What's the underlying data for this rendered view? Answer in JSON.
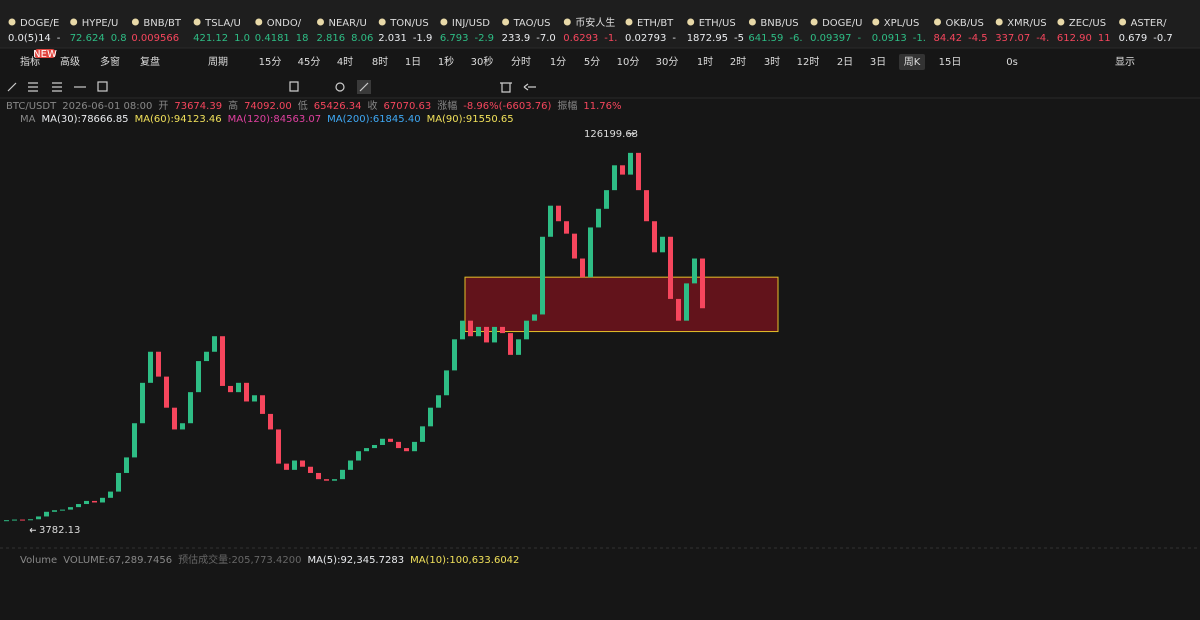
{
  "ticker": [
    {
      "name": "DOGE/E",
      "price": "0.0(5)14",
      "change": "-",
      "color": "#eaecef"
    },
    {
      "name": "HYPE/U",
      "price": "72.624",
      "change": "0.8",
      "color": "#2ebd85"
    },
    {
      "name": "BNB/BT",
      "price": "0.009566",
      "change": "",
      "color": "#f6465d"
    },
    {
      "name": "TSLA/U",
      "price": "421.12",
      "change": "1.0",
      "color": "#2ebd85"
    },
    {
      "name": "ONDO/",
      "price": "0.4181",
      "change": "18",
      "color": "#2ebd85"
    },
    {
      "name": "NEAR/U",
      "price": "2.816",
      "change": "8.06",
      "color": "#2ebd85"
    },
    {
      "name": "TON/US",
      "price": "2.031",
      "change": "-1.9",
      "color": "#eaecef"
    },
    {
      "name": "INJ/USD",
      "price": "6.793",
      "change": "-2.9",
      "color": "#2ebd85"
    },
    {
      "name": "TAO/US",
      "price": "233.9",
      "change": "-7.0",
      "color": "#eaecef"
    },
    {
      "name": "币安人生",
      "price": "0.6293",
      "change": "-1.",
      "color": "#f6465d"
    },
    {
      "name": "ETH/BT",
      "price": "0.02793",
      "change": "-",
      "color": "#eaecef"
    },
    {
      "name": "ETH/US",
      "price": "1872.95",
      "change": "-5",
      "color": "#eaecef"
    },
    {
      "name": "BNB/US",
      "price": "641.59",
      "change": "-6.",
      "color": "#2ebd85"
    },
    {
      "name": "DOGE/U",
      "price": "0.09397",
      "change": "-",
      "color": "#2ebd85"
    },
    {
      "name": "XPL/US",
      "price": "0.0913",
      "change": "-1.",
      "color": "#2ebd85"
    },
    {
      "name": "OKB/US",
      "price": "84.42",
      "change": "-4.5",
      "color": "#f6465d"
    },
    {
      "name": "XMR/US",
      "price": "337.07",
      "change": "-4.",
      "color": "#f6465d"
    },
    {
      "name": "ZEC/US",
      "price": "612.90",
      "change": "11",
      "color": "#f6465d"
    },
    {
      "name": "ASTER/",
      "price": "0.679",
      "change": "-0.7",
      "color": "#eaecef"
    }
  ],
  "toolbar": {
    "left": [
      "指标",
      "高级",
      "多窗",
      "复盘",
      "周期"
    ],
    "badge": "NEW",
    "intervals": [
      "15分",
      "45分",
      "4时",
      "8时",
      "1日",
      "1秒",
      "30秒",
      "分时",
      "1分",
      "5分",
      "10分",
      "30分",
      "1时",
      "2时",
      "3时",
      "12时",
      "2日",
      "3日",
      "周K",
      "15日"
    ],
    "active": "周K",
    "timer": "0s",
    "display": "显示"
  },
  "header": [
    {
      "text": "BTC/USDT",
      "color": "#888"
    },
    {
      "text": "2026-06-01 08:00",
      "color": "#888"
    },
    {
      "text": "开",
      "color": "#888"
    },
    {
      "text": "73674.39",
      "color": "#f6465d"
    },
    {
      "text": "高",
      "color": "#888"
    },
    {
      "text": "74092.00",
      "color": "#f6465d"
    },
    {
      "text": "低",
      "color": "#888"
    },
    {
      "text": "65426.34",
      "color": "#f6465d"
    },
    {
      "text": "收",
      "color": "#888"
    },
    {
      "text": "67070.63",
      "color": "#f6465d"
    },
    {
      "text": "涨幅",
      "color": "#888"
    },
    {
      "text": "-8.96%(-6603.76)",
      "color": "#f6465d"
    },
    {
      "text": "振幅",
      "color": "#888"
    },
    {
      "text": "11.76%",
      "color": "#f6465d"
    }
  ],
  "ma_legend": [
    {
      "text": "MA",
      "color": "#888"
    },
    {
      "text": "MA(30):78666.85",
      "color": "#eaecef"
    },
    {
      "text": "MA(60):94123.46",
      "color": "#f0e05a"
    },
    {
      "text": "MA(120):84563.07",
      "color": "#e040a0"
    },
    {
      "text": "MA(200):61845.40",
      "color": "#3fa9f5"
    },
    {
      "text": "MA(90):91550.65",
      "color": "#f0e05a"
    }
  ],
  "volume_legend": [
    {
      "text": "Volume",
      "color": "#888"
    },
    {
      "text": "VOLUME:67,289.7456",
      "color": "#888"
    },
    {
      "text": "预估成交量:205,773.4200",
      "color": "#666"
    },
    {
      "text": "MA(5):92,345.7283",
      "color": "#eaecef"
    },
    {
      "text": "MA(10):100,633.6042",
      "color": "#f0e05a"
    }
  ],
  "chart": {
    "ylim": [
      0,
      130000
    ],
    "high": 126199.63,
    "low": 3782.13,
    "up_color": "#2ebd85",
    "down_color": "#f6465d",
    "zone": {
      "top": 82000,
      "bottom": 64500
    },
    "closes": [
      3800,
      4000,
      3900,
      4100,
      5000,
      6500,
      7000,
      7200,
      8000,
      9000,
      10000,
      9500,
      11000,
      13000,
      19000,
      24000,
      35000,
      48000,
      58000,
      50000,
      40000,
      33000,
      35000,
      45000,
      55000,
      58000,
      63000,
      47000,
      45000,
      48000,
      42000,
      44000,
      38000,
      33000,
      22000,
      20000,
      23000,
      21000,
      19000,
      17000,
      16500,
      17000,
      20000,
      23000,
      26000,
      27000,
      28000,
      30000,
      29000,
      27000,
      26000,
      29000,
      34000,
      40000,
      44000,
      52000,
      62000,
      68000,
      63000,
      66000,
      61000,
      66000,
      64000,
      57000,
      62000,
      68000,
      70000,
      95000,
      105000,
      100000,
      96000,
      88000,
      82000,
      98000,
      104000,
      110000,
      118000,
      115000,
      122000,
      110000,
      100000,
      90000,
      95000,
      75000,
      68000,
      80000,
      88000,
      72000
    ]
  }
}
